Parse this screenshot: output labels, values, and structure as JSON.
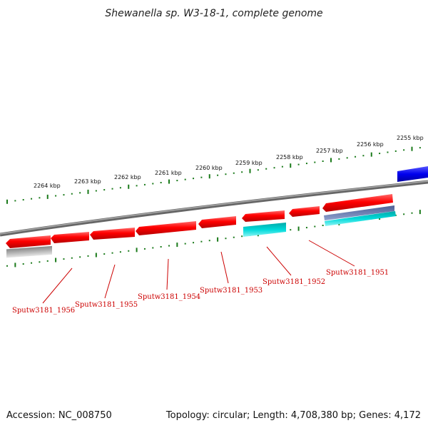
{
  "title": "Shewanella sp. W3-18-1, complete genome",
  "accession_text": "Accession: NC_008750",
  "summary_text": "Topology: circular; Length: 4,708,380 bp; Genes: 4,172",
  "scale_labels": [
    "2264 kbp",
    "2263 kbp",
    "2262 kbp",
    "2261 kbp",
    "2260 kbp",
    "2259 kbp",
    "2258 kbp",
    "2257 kbp",
    "2256 kbp",
    "2255 kbp"
  ],
  "gene_labels": [
    "Sputw3181_1956",
    "Sputw3181_1955",
    "Sputw3181_1954",
    "Sputw3181_1953",
    "Sputw3181_1952",
    "Sputw3181_1951"
  ],
  "colors": {
    "gene_red": "#ff0000",
    "gene_red_dark": "#b30000",
    "cyan": "#00d0d0",
    "blue": "#0000ee",
    "gray_feature": "#aaaaaa",
    "slate": "#6f7fb0",
    "backbone": "#808080",
    "tick_green": "#1a7a1a",
    "label_red": "#cc0000"
  }
}
